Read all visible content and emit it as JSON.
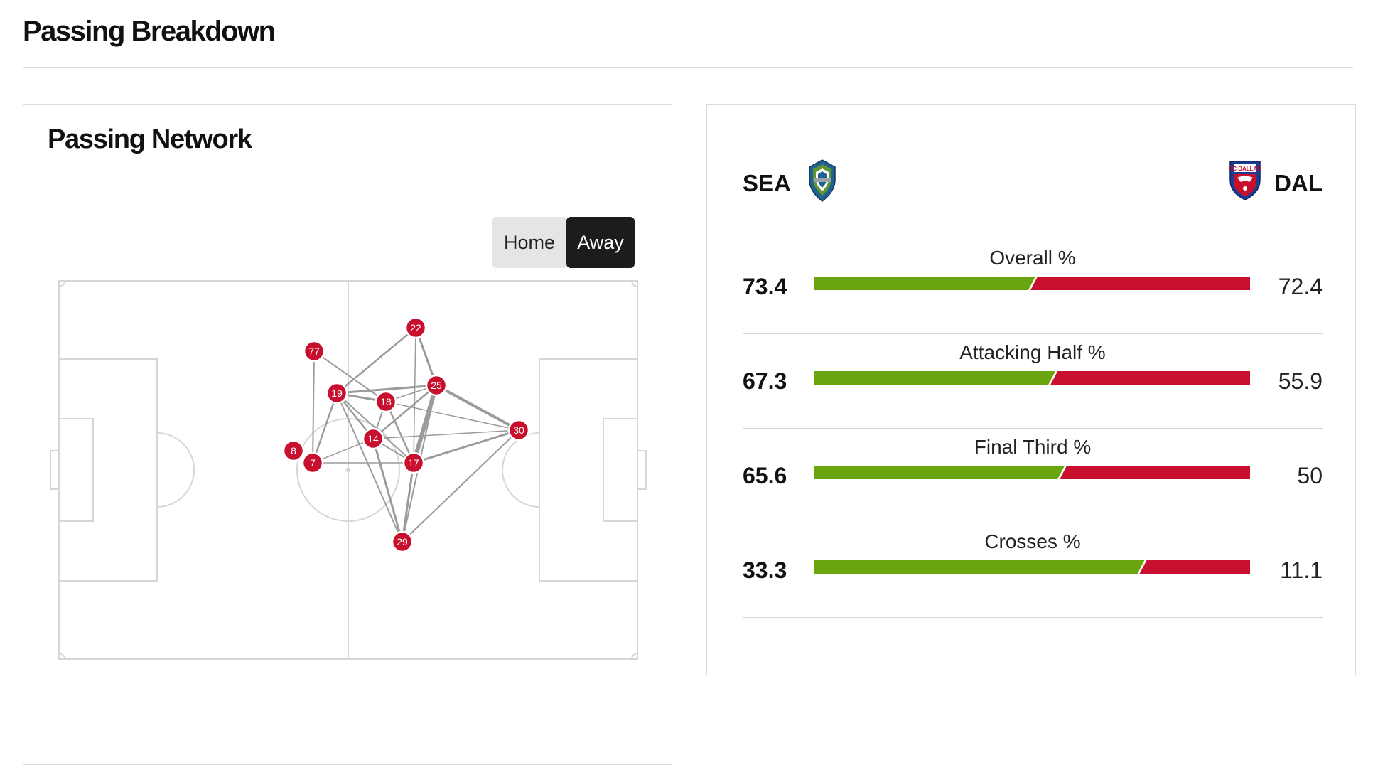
{
  "page": {
    "title": "Passing Breakdown"
  },
  "network": {
    "title": "Passing Network",
    "toggle": {
      "home_label": "Home",
      "away_label": "Away",
      "selected": "Away"
    },
    "node_color": "#c8102e",
    "players": [
      {
        "number": "22"
      },
      {
        "number": "77"
      },
      {
        "number": "19"
      },
      {
        "number": "18"
      },
      {
        "number": "25"
      },
      {
        "number": "30"
      },
      {
        "number": "14"
      },
      {
        "number": "8"
      },
      {
        "number": "7"
      },
      {
        "number": "17"
      },
      {
        "number": "29"
      }
    ]
  },
  "comparison": {
    "home": {
      "abbr": "SEA",
      "crest_icon": "seattle-sounders-crest",
      "color": "#6aa50f"
    },
    "away": {
      "abbr": "DAL",
      "crest_icon": "fc-dallas-crest",
      "color": "#c8102e"
    },
    "stats": [
      {
        "label": "Overall %",
        "home": "73.4",
        "away": "72.4",
        "home_share": 0.5
      },
      {
        "label": "Attacking Half %",
        "home": "67.3",
        "away": "55.9",
        "home_share": 0.546
      },
      {
        "label": "Final Third %",
        "home": "65.6",
        "away": "50",
        "home_share": 0.567
      },
      {
        "label": "Crosses %",
        "home": "33.3",
        "away": "11.1",
        "home_share": 0.75
      }
    ]
  }
}
